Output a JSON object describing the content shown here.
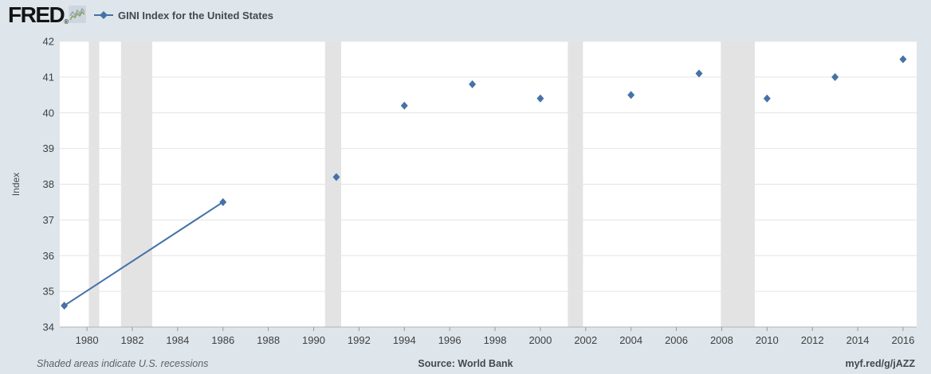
{
  "header": {
    "logo_text": "FRED",
    "registered_mark": "®",
    "series_legend": "GINI Index for the United States"
  },
  "chart_data": {
    "type": "scatter",
    "title": "GINI Index for the United States",
    "xlabel": "",
    "ylabel": "Index",
    "ylim": [
      34,
      42
    ],
    "xlim": [
      1978.8,
      2016.6
    ],
    "y_ticks": [
      34,
      35,
      36,
      37,
      38,
      39,
      40,
      41,
      42
    ],
    "x_ticks": [
      1980,
      1982,
      1984,
      1986,
      1988,
      1990,
      1992,
      1994,
      1996,
      1998,
      2000,
      2002,
      2004,
      2006,
      2008,
      2010,
      2012,
      2014,
      2016
    ],
    "grid": true,
    "legend_position": "header-top-left",
    "series": [
      {
        "name": "GINI Index for the United States",
        "marker": "diamond",
        "color": "#4572a7",
        "x": [
          1979,
          1986,
          1991,
          1994,
          1997,
          2000,
          2004,
          2007,
          2010,
          2013,
          2016
        ],
        "y": [
          34.6,
          37.5,
          38.2,
          40.2,
          40.8,
          40.4,
          40.5,
          41.1,
          40.4,
          41.0,
          41.5
        ],
        "connected_segments": [
          [
            1979,
            1986
          ]
        ]
      }
    ],
    "recession_bands": [
      {
        "start": 1980.08,
        "end": 1980.54
      },
      {
        "start": 1981.5,
        "end": 1982.88
      },
      {
        "start": 1990.5,
        "end": 1991.21
      },
      {
        "start": 2001.21,
        "end": 2001.88
      },
      {
        "start": 2007.96,
        "end": 2009.46
      }
    ]
  },
  "footer": {
    "recession_note": "Shaded areas indicate U.S. recessions",
    "source": "Source: World Bank",
    "short_url": "myf.red/g/jAZZ"
  },
  "colors": {
    "page_bg": "#dee6ec",
    "plot_bg": "#ffffff",
    "grid_line": "#e4e4e4",
    "recession_band": "#e3e3e3",
    "axis_line": "#b3b3b3",
    "tick_mark": "#999999",
    "tick_text": "#404040",
    "series_blue": "#4572a7",
    "logo_green": "#86a565",
    "logo_gray": "#9aa4ab"
  }
}
